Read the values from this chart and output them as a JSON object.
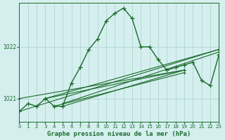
{
  "title": "Graphe pression niveau de la mer (hPa)",
  "background_color": "#d5efef",
  "grid_color": "#b8d8d8",
  "line_color": "#1a6b2a",
  "xlim": [
    0,
    23
  ],
  "ylim": [
    1020.55,
    1022.85
  ],
  "yticks": [
    1021,
    1022
  ],
  "xticks": [
    0,
    1,
    2,
    3,
    4,
    5,
    6,
    7,
    8,
    9,
    10,
    11,
    12,
    13,
    14,
    15,
    16,
    17,
    18,
    19,
    20,
    21,
    22,
    23
  ],
  "main_series_x": [
    0,
    1,
    2,
    3,
    4,
    5,
    6,
    7,
    8,
    9,
    10,
    11,
    12,
    13,
    14,
    15,
    16,
    17,
    18,
    19,
    20,
    21,
    22,
    23
  ],
  "main_series_y": [
    1020.75,
    1020.9,
    1020.85,
    1021.0,
    1020.85,
    1020.85,
    1021.3,
    1021.6,
    1021.95,
    1022.15,
    1022.5,
    1022.65,
    1022.75,
    1022.55,
    1022.0,
    1022.0,
    1021.75,
    1021.55,
    1021.6,
    1021.65,
    1021.7,
    1021.35,
    1021.25,
    1021.85
  ],
  "flat_lines": [
    {
      "x": [
        0,
        19
      ],
      "y": [
        1021.0,
        1021.55
      ]
    },
    {
      "x": [
        3,
        19
      ],
      "y": [
        1021.0,
        1021.55
      ]
    },
    {
      "x": [
        4,
        19
      ],
      "y": [
        1020.85,
        1021.5
      ]
    },
    {
      "x": [
        5,
        19
      ],
      "y": [
        1020.85,
        1021.55
      ]
    },
    {
      "x": [
        5,
        23
      ],
      "y": [
        1020.9,
        1021.9
      ]
    },
    {
      "x": [
        3,
        23
      ],
      "y": [
        1021.0,
        1021.95
      ]
    },
    {
      "x": [
        0,
        23
      ],
      "y": [
        1020.75,
        1021.95
      ]
    }
  ]
}
